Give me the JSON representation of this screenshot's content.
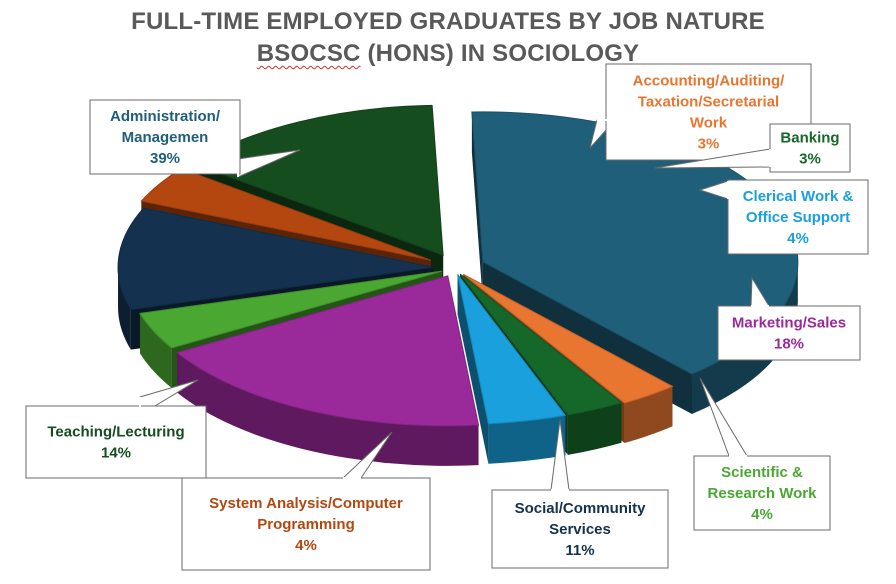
{
  "chart_data": {
    "type": "pie",
    "title_line1": "FULL-TIME EMPLOYED GRADUATES BY JOB NATURE",
    "title_line2_marked": "BSOCSC",
    "title_line2_rest": " (HONS) IN SOCIOLOGY",
    "slices": [
      {
        "name": "Administration/ Managemen",
        "lines": [
          "Administration/",
          "Managemen"
        ],
        "pct_label": "39%",
        "value": 39,
        "color": "#1f5f7a"
      },
      {
        "name": "Accounting/Auditing/ Taxation/Secretarial Work",
        "lines": [
          "Accounting/Auditing/",
          "Taxation/Secretarial",
          "Work"
        ],
        "pct_label": "3%",
        "value": 3,
        "color": "#e87530"
      },
      {
        "name": "Banking",
        "lines": [
          "Banking"
        ],
        "pct_label": "3%",
        "value": 3,
        "color": "#16672a"
      },
      {
        "name": "Clerical Work & Office Support",
        "lines": [
          "Clerical Work &",
          "Office Support"
        ],
        "pct_label": "4%",
        "value": 4,
        "color": "#1aa0dc"
      },
      {
        "name": "Marketing/Sales",
        "lines": [
          "Marketing/Sales"
        ],
        "pct_label": "18%",
        "value": 18,
        "color": "#9a2a9a"
      },
      {
        "name": "Scientific & Research Work",
        "lines": [
          "Scientific &",
          "Research Work"
        ],
        "pct_label": "4%",
        "value": 4,
        "color": "#4aa832"
      },
      {
        "name": "Social/Community Services",
        "lines": [
          "Social/Community",
          "Services"
        ],
        "pct_label": "11%",
        "value": 11,
        "color": "#14324f"
      },
      {
        "name": "System Analysis/Computer Programming",
        "lines": [
          "System Analysis/Computer",
          "Programming"
        ],
        "pct_label": "4%",
        "value": 4,
        "color": "#b3470f"
      },
      {
        "name": "Teaching/Lecturing",
        "lines": [
          "Teaching/Lecturing"
        ],
        "pct_label": "14%",
        "value": 14,
        "color": "#154d1f"
      }
    ],
    "label_colors": [
      "#1f5f7a",
      "#e87530",
      "#16672a",
      "#1aa0dc",
      "#9a2a9a",
      "#4aa832",
      "#14324f",
      "#b3470f",
      "#154d1f"
    ],
    "style": "3d-exploded-pie"
  }
}
